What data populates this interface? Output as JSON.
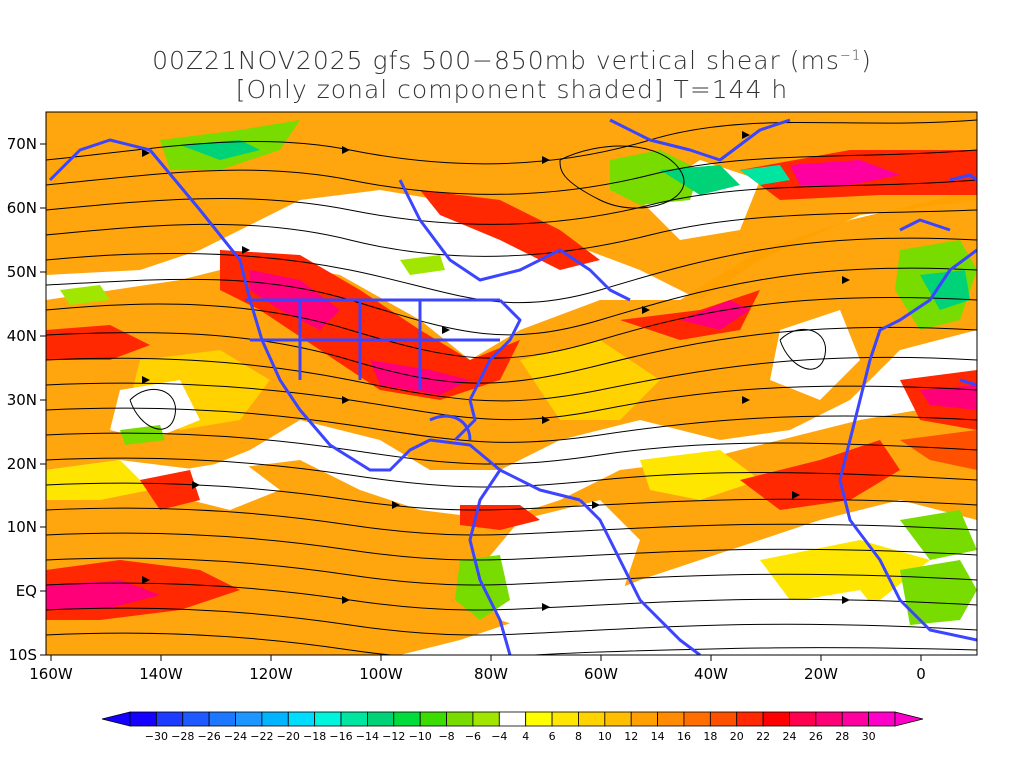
{
  "title": {
    "line1": "00Z21NOV2025 gfs 500−850mb vertical shear (ms",
    "line1_unit_sup": "−1",
    "line1_close": ")",
    "line2": "[Only zonal component shaded] T=144 h"
  },
  "map": {
    "lat_labels": [
      "70N",
      "60N",
      "50N",
      "40N",
      "30N",
      "20N",
      "10N",
      "EQ",
      "10S"
    ],
    "lon_labels": [
      "160W",
      "140W",
      "120W",
      "100W",
      "80W",
      "60W",
      "40W",
      "20W",
      "0"
    ],
    "coastline_color": "#3b44ff",
    "streamline_color": "#000000"
  },
  "colorbar": {
    "labels": [
      "−30",
      "−28",
      "−26",
      "−24",
      "−22",
      "−20",
      "−18",
      "−16",
      "−14",
      "−12",
      "−10",
      "−8",
      "−6",
      "−4",
      "4",
      "6",
      "8",
      "10",
      "12",
      "14",
      "16",
      "18",
      "20",
      "22",
      "24",
      "26",
      "28",
      "30"
    ],
    "colors": [
      "#1600ff",
      "#1e3cff",
      "#1e5aff",
      "#1e78ff",
      "#1e96ff",
      "#00b4ff",
      "#00dcff",
      "#00f5dc",
      "#00e6a0",
      "#00d278",
      "#00dc3c",
      "#3cdc00",
      "#78dc00",
      "#a0e600",
      "#ffffff",
      "#ffff00",
      "#ffe600",
      "#ffd200",
      "#ffbe00",
      "#ffa000",
      "#ff8c00",
      "#ff6e00",
      "#ff5000",
      "#ff2800",
      "#ff0000",
      "#ff0050",
      "#ff0078",
      "#ff00a0",
      "#ff00c8"
    ]
  }
}
